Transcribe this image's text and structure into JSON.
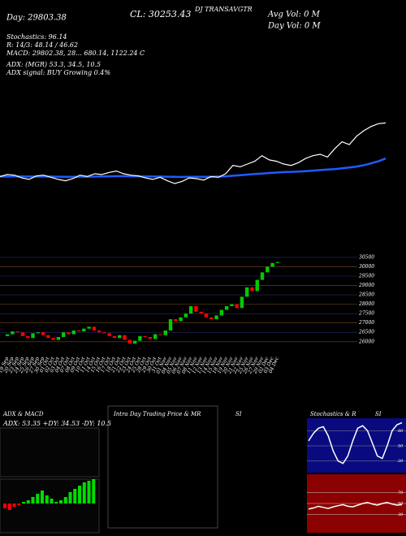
{
  "header": {
    "lines": [
      "DJ TRANSAVGTR",
      "CL: 30253.43",
      "Day: 29803.38",
      "Avg Vol: 0  M",
      "Day Vol: 0  M",
      "Stochastics: 96.14",
      "R: 14/3: 48.14 / 46.62",
      "MACD: 29802.38, 28... 680.14, 1122.24  C",
      "ADX: (MGR) 53.3, 34.5, 10.5",
      "ADX signal: BUY Growing 0.4%"
    ]
  },
  "chart_data": {
    "type": "candlestick",
    "categories": [
      "19 Sep",
      "20 Sep",
      "23 Sep",
      "24 Sep",
      "25 Sep",
      "26 Sep",
      "27 Sep",
      "30 Sep",
      "01 Oct",
      "02 Oct",
      "03 Oct",
      "04 Oct",
      "07 Oct",
      "08 Oct",
      "09 Oct",
      "10 Oct",
      "11 Oct",
      "14 Oct",
      "15 Oct",
      "16 Oct",
      "17 Oct",
      "18 Oct",
      "21 Oct",
      "22 Oct",
      "23 Oct",
      "24 Oct",
      "25 Oct",
      "28 Oct",
      "29 Oct",
      "30 Oct",
      "31 Oct",
      "01 Nov",
      "04 Nov",
      "05 Nov",
      "06 Nov",
      "07 Nov",
      "08 Nov",
      "11 Nov",
      "12 Nov",
      "13 Nov",
      "14 Nov",
      "15 Nov",
      "18 Nov",
      "19 Nov",
      "20 Nov",
      "21 Nov",
      "22 Nov",
      "25 Nov",
      "26 Nov",
      "27 Nov",
      "29 Nov",
      "02 Dec",
      "03 Dec",
      "04 Dec"
    ],
    "open": [
      26300,
      26400,
      26550,
      26500,
      26300,
      26200,
      26450,
      26500,
      26350,
      26200,
      26100,
      26250,
      26500,
      26400,
      26600,
      26550,
      26700,
      26800,
      26600,
      26500,
      26450,
      26300,
      26200,
      26350,
      26100,
      25900,
      26050,
      26300,
      26250,
      26150,
      26400,
      26350,
      26600,
      27200,
      27100,
      27300,
      27500,
      27900,
      27600,
      27500,
      27300,
      27200,
      27400,
      27700,
      27900,
      28000,
      27800,
      28400,
      28900,
      28700,
      29300,
      29700,
      30000,
      30200
    ],
    "close": [
      26400,
      26550,
      26500,
      26300,
      26200,
      26450,
      26500,
      26350,
      26200,
      26100,
      26250,
      26500,
      26400,
      26600,
      26550,
      26700,
      26800,
      26600,
      26500,
      26450,
      26300,
      26200,
      26350,
      26100,
      25900,
      26050,
      26300,
      26250,
      26150,
      26400,
      26350,
      26600,
      27200,
      27100,
      27300,
      27500,
      27900,
      27600,
      27500,
      27300,
      27200,
      27400,
      27700,
      27900,
      28000,
      27800,
      28400,
      28900,
      28700,
      29300,
      29700,
      30000,
      30200,
      30253
    ],
    "ma": [
      26400,
      26400,
      26410,
      26410,
      26400,
      26400,
      26410,
      26400,
      26390,
      26380,
      26380,
      26390,
      26390,
      26400,
      26410,
      26420,
      26430,
      26430,
      26420,
      26420,
      26410,
      26400,
      26400,
      26390,
      26380,
      26370,
      26380,
      26380,
      26380,
      26390,
      26400,
      26420,
      26460,
      26500,
      26540,
      26580,
      26620,
      26660,
      26690,
      26720,
      26740,
      26760,
      26790,
      26830,
      26870,
      26910,
      26940,
      26990,
      27050,
      27120,
      27220,
      27350,
      27500,
      27700
    ],
    "ylim": [
      25600,
      30800
    ],
    "yticks": [
      26000,
      26500,
      27000,
      27500,
      28000,
      28500,
      29000,
      29500,
      30000,
      30500
    ],
    "line_ylim": [
      24500,
      31500
    ],
    "up_color": "#00cc00",
    "down_color": "#ff0000",
    "price_color": "#ffffff",
    "ma_color": "#1e5cff"
  },
  "panels": {
    "adx_title": "ADX  & MACD",
    "adx_values": "ADX: 53.35 +DY: 34.53 -DY: 10.5",
    "intraday_title": "Intra Day Trading Price  & MR",
    "intraday_si": "SI",
    "stoch_title": "Stochastics & R",
    "stoch_si": "SI",
    "stoch_ticks": [
      20,
      50,
      80
    ],
    "rsi_ticks": [
      30,
      50,
      70
    ],
    "stochastic": [
      60,
      75,
      85,
      88,
      70,
      40,
      20,
      15,
      30,
      60,
      85,
      90,
      80,
      55,
      30,
      25,
      50,
      80,
      92,
      96
    ],
    "rsi": [
      40,
      42,
      45,
      43,
      41,
      44,
      46,
      48,
      45,
      44,
      47,
      50,
      52,
      49,
      47,
      50,
      52,
      49,
      47,
      48
    ],
    "macd_hist": [
      -3,
      -4,
      -2,
      -1,
      1,
      2,
      4,
      6,
      8,
      5,
      3,
      1,
      2,
      4,
      7,
      9,
      11,
      13,
      14,
      15
    ]
  }
}
